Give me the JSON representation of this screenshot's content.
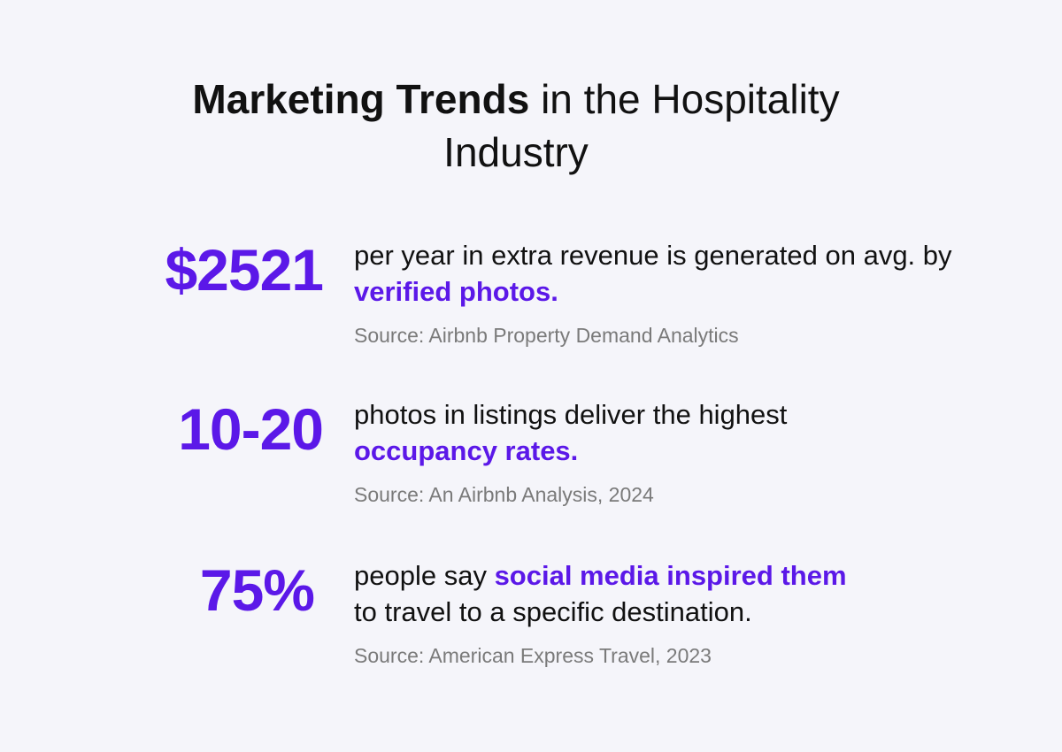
{
  "title": {
    "bold": "Marketing Trends",
    "rest": " in the Hospitality",
    "line2": "Industry"
  },
  "accent_color": "#5b18e8",
  "stats": [
    {
      "value": "$2521",
      "text_before": "per year in extra revenue is generated on avg. by ",
      "highlight": "verified photos.",
      "text_after": "",
      "source": "Source: Airbnb Property Demand Analytics"
    },
    {
      "value": "10-20",
      "text_before": "photos in listings deliver the highest ",
      "highlight": "occupancy rates.",
      "text_after": "",
      "source": "Source: An Airbnb Analysis, 2024"
    },
    {
      "value": "75%",
      "text_before": "people say ",
      "highlight": "social media inspired them",
      "text_after": " to travel to a specific destination.",
      "source": "Source: American Express Travel, 2023"
    }
  ]
}
